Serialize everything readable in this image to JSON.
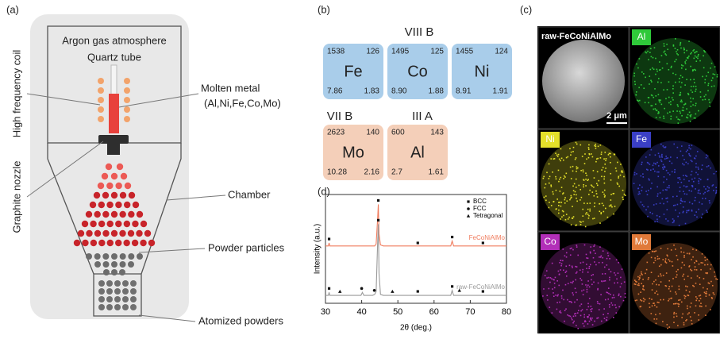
{
  "panel_a": {
    "label": "(a)",
    "argon": "Argon gas atmosphere",
    "quartz": "Quartz tube",
    "coil": "High frequency coil",
    "molten": "Molten metal",
    "molten_elements": "(Al,Ni,Fe,Co,Mo)",
    "nozzle": "Graphite nozzle",
    "chamber": "Chamber",
    "particles": "Powder particles",
    "atomized": "Atomized powders"
  },
  "panel_b": {
    "label": "(b)",
    "group_viii": "VIII B",
    "group_vii": "VII B",
    "group_iii": "III A",
    "elements": [
      {
        "symbol": "Fe",
        "top_left": "1538",
        "top_right": "126",
        "bottom_left": "7.86",
        "bottom_right": "1.83"
      },
      {
        "symbol": "Co",
        "top_left": "1495",
        "top_right": "125",
        "bottom_left": "8.90",
        "bottom_right": "1.88"
      },
      {
        "symbol": "Ni",
        "top_left": "1455",
        "top_right": "124",
        "bottom_left": "8.91",
        "bottom_right": "1.91"
      },
      {
        "symbol": "Mo",
        "top_left": "2623",
        "top_right": "140",
        "bottom_left": "10.28",
        "bottom_right": "2.16"
      },
      {
        "symbol": "Al",
        "top_left": "600",
        "top_right": "143",
        "bottom_left": "2.7",
        "bottom_right": "1.61"
      }
    ]
  },
  "panel_c": {
    "label": "(c)",
    "maps": [
      "raw-FeCoNiAlMo",
      "Al",
      "Ni",
      "Fe",
      "Co",
      "Mo"
    ],
    "scale_bar": "2 μm"
  },
  "chart_data": {
    "type": "line",
    "label": "(d)",
    "x_label": "2θ (deg.)",
    "y_label": "Intensity (a.u.)",
    "xlim": [
      30,
      80
    ],
    "xticks": [
      30,
      40,
      50,
      60,
      70,
      80
    ],
    "ylim": [
      0,
      110
    ],
    "x": [
      30,
      30.8,
      31,
      31.2,
      34,
      39.8,
      40.2,
      40.6,
      43,
      43.6,
      44,
      44.4,
      44.6,
      44.8,
      45.2,
      46,
      55,
      64.6,
      65,
      65.4,
      70,
      80
    ],
    "series": [
      {
        "name": "FeCoNiAlMo",
        "color": "#f07c5e",
        "values": [
          58,
          58,
          61,
          58,
          58,
          58,
          58,
          58,
          58,
          58,
          60,
          85,
          100,
          70,
          59,
          58,
          58,
          58,
          63,
          58,
          58,
          58
        ]
      },
      {
        "name": "raw-FeCoNiAlMo",
        "color": "#9a9a9a",
        "values": [
          8,
          8,
          11,
          8,
          8,
          8,
          11,
          8,
          8,
          9,
          12,
          60,
          80,
          30,
          9,
          8,
          8,
          8,
          13,
          8,
          8,
          8
        ]
      }
    ],
    "phases": [
      {
        "name": "BCC",
        "shape": "square",
        "points": [
          [
            31,
            65
          ],
          [
            44.6,
            104
          ],
          [
            55.5,
            61
          ],
          [
            65,
            67
          ],
          [
            73.5,
            61
          ],
          [
            31,
            15
          ],
          [
            44.6,
            84
          ],
          [
            55.5,
            12
          ],
          [
            65,
            17
          ],
          [
            73.5,
            12
          ]
        ]
      },
      {
        "name": "FCC",
        "shape": "circle",
        "points": [
          [
            40,
            15
          ],
          [
            43.5,
            13
          ]
        ]
      },
      {
        "name": "Tetragonal",
        "shape": "triangle",
        "points": [
          [
            34,
            12
          ],
          [
            48.5,
            12
          ],
          [
            67,
            13
          ]
        ]
      }
    ]
  }
}
